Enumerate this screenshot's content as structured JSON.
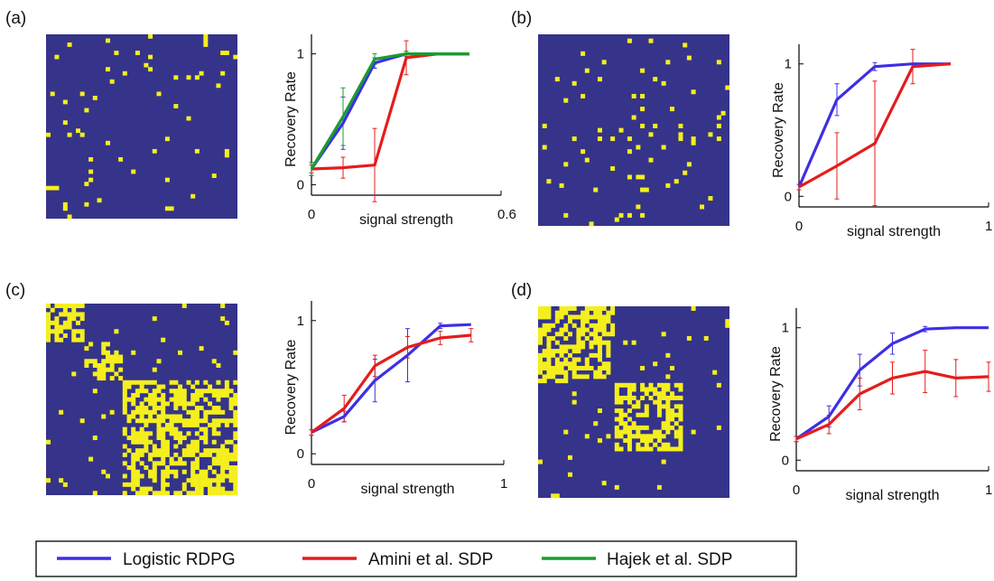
{
  "legend": [
    {
      "name": "Logistic RDPG",
      "color": "#3d2fe3"
    },
    {
      "name": "Amini et al. SDP",
      "color": "#e51c1c"
    },
    {
      "name": "Hajek et al. SDP",
      "color": "#1a9c2e"
    }
  ],
  "colors": {
    "matrix_bg": "#35348a",
    "matrix_on": "#f4ef1d"
  },
  "chart_data": [
    {
      "type": "line",
      "panel": "(a)",
      "xlabel": "signal strength",
      "ylabel": "Recovery Rate",
      "xlim": [
        0,
        0.6
      ],
      "ylim": [
        0,
        1
      ],
      "xticks": [
        "0",
        "0.6"
      ],
      "yticks": [
        "0",
        "1"
      ],
      "xtick_values": [
        0,
        0.6
      ],
      "ytick_values": [
        0,
        1
      ],
      "grid": false,
      "matrix": {
        "blocks": [
          [
            0.5,
            0.5
          ],
          [
            0.5,
            0.5
          ]
        ],
        "density_in": 0.55,
        "density_out": 0.06,
        "seed": 11
      },
      "x": [
        0,
        0.1,
        0.2,
        0.3,
        0.4,
        0.5
      ],
      "series": [
        {
          "name": "Logistic RDPG",
          "color": "#3d2fe3",
          "values": [
            0.12,
            0.47,
            0.93,
            1.0,
            1.0,
            1.0
          ],
          "err": [
            0.05,
            0.2,
            0.04,
            0.02,
            0,
            0
          ]
        },
        {
          "name": "Amini et al. SDP",
          "color": "#e51c1c",
          "values": [
            0.12,
            0.13,
            0.15,
            0.97,
            1.0,
            1.0
          ],
          "err": [
            0.03,
            0.08,
            0.28,
            0.13,
            0,
            0
          ]
        },
        {
          "name": "Hajek et al. SDP",
          "color": "#1a9c2e",
          "values": [
            0.12,
            0.52,
            0.96,
            1.0,
            1.0,
            1.0
          ],
          "err": [
            0.05,
            0.22,
            0.04,
            0.02,
            0,
            0
          ]
        }
      ]
    },
    {
      "type": "line",
      "panel": "(b)",
      "xlabel": "signal strength",
      "ylabel": "Recovery Rate",
      "xlim": [
        0,
        1
      ],
      "ylim": [
        0,
        1
      ],
      "xticks": [
        "0",
        "1"
      ],
      "yticks": [
        "0",
        "1"
      ],
      "xtick_values": [
        0,
        1
      ],
      "ytick_values": [
        0,
        1
      ],
      "grid": false,
      "matrix": {
        "blocks": [
          [
            0.5,
            0.5
          ],
          [
            0.5,
            0.5
          ]
        ],
        "density_in": 0.82,
        "density_out": 0.05,
        "diag": true,
        "seed": 23
      },
      "x": [
        0,
        0.2,
        0.4,
        0.6,
        0.8
      ],
      "series": [
        {
          "name": "Logistic RDPG",
          "color": "#3d2fe3",
          "values": [
            0.07,
            0.73,
            0.98,
            1.0,
            1.0
          ],
          "err": [
            0.02,
            0.12,
            0.03,
            0,
            0
          ]
        },
        {
          "name": "Amini et al. SDP",
          "color": "#e51c1c",
          "values": [
            0.07,
            0.23,
            0.4,
            0.98,
            1.0
          ],
          "err": [
            0.02,
            0.25,
            0.47,
            0.13,
            0
          ]
        }
      ]
    },
    {
      "type": "line",
      "panel": "(c)",
      "xlabel": "signal strength",
      "ylabel": "Recovery Rate",
      "xlim": [
        0,
        1
      ],
      "ylim": [
        0,
        1
      ],
      "xticks": [
        "0",
        "1"
      ],
      "yticks": [
        "0",
        "1"
      ],
      "xtick_values": [
        0,
        1
      ],
      "ytick_values": [
        0,
        1
      ],
      "grid": false,
      "matrix": {
        "blocks": [
          [
            0,
            0.2
          ],
          [
            0.2,
            0.4
          ],
          [
            0.4,
            1
          ]
        ],
        "density_in": 0.6,
        "density_out": 0.05,
        "seed": 37
      },
      "x": [
        0,
        0.17,
        0.33,
        0.5,
        0.67,
        0.83
      ],
      "series": [
        {
          "name": "Logistic RDPG",
          "color": "#3d2fe3",
          "values": [
            0.16,
            0.28,
            0.55,
            0.74,
            0.96,
            0.97
          ],
          "err": [
            0.02,
            0.04,
            0.16,
            0.2,
            0.02,
            0
          ]
        },
        {
          "name": "Amini et al. SDP",
          "color": "#e51c1c",
          "values": [
            0.16,
            0.34,
            0.66,
            0.8,
            0.87,
            0.89
          ],
          "err": [
            0.02,
            0.1,
            0.08,
            0.08,
            0.05,
            0.05
          ]
        }
      ]
    },
    {
      "type": "line",
      "panel": "(d)",
      "xlabel": "signal strength",
      "ylabel": "Recovery Rate",
      "xlim": [
        0,
        1
      ],
      "ylim": [
        0,
        1
      ],
      "xticks": [
        "0",
        "1"
      ],
      "yticks": [
        "0",
        "1"
      ],
      "xtick_values": [
        0,
        1
      ],
      "ytick_values": [
        0,
        1
      ],
      "grid": false,
      "matrix": {
        "blocks": [
          [
            0,
            0.4
          ],
          [
            0.4,
            0.75
          ]
        ],
        "density_in": 0.55,
        "density_out": 0.05,
        "seed": 53
      },
      "x": [
        0,
        0.17,
        0.33,
        0.5,
        0.67,
        0.83,
        1
      ],
      "series": [
        {
          "name": "Logistic RDPG",
          "color": "#3d2fe3",
          "values": [
            0.16,
            0.33,
            0.68,
            0.88,
            0.99,
            1.0,
            1.0
          ],
          "err": [
            0.02,
            0.08,
            0.12,
            0.08,
            0.02,
            0,
            0
          ]
        },
        {
          "name": "Amini et al. SDP",
          "color": "#e51c1c",
          "values": [
            0.16,
            0.27,
            0.5,
            0.62,
            0.67,
            0.62,
            0.63
          ],
          "err": [
            0.02,
            0.07,
            0.12,
            0.12,
            0.16,
            0.14,
            0.11
          ]
        }
      ]
    }
  ]
}
